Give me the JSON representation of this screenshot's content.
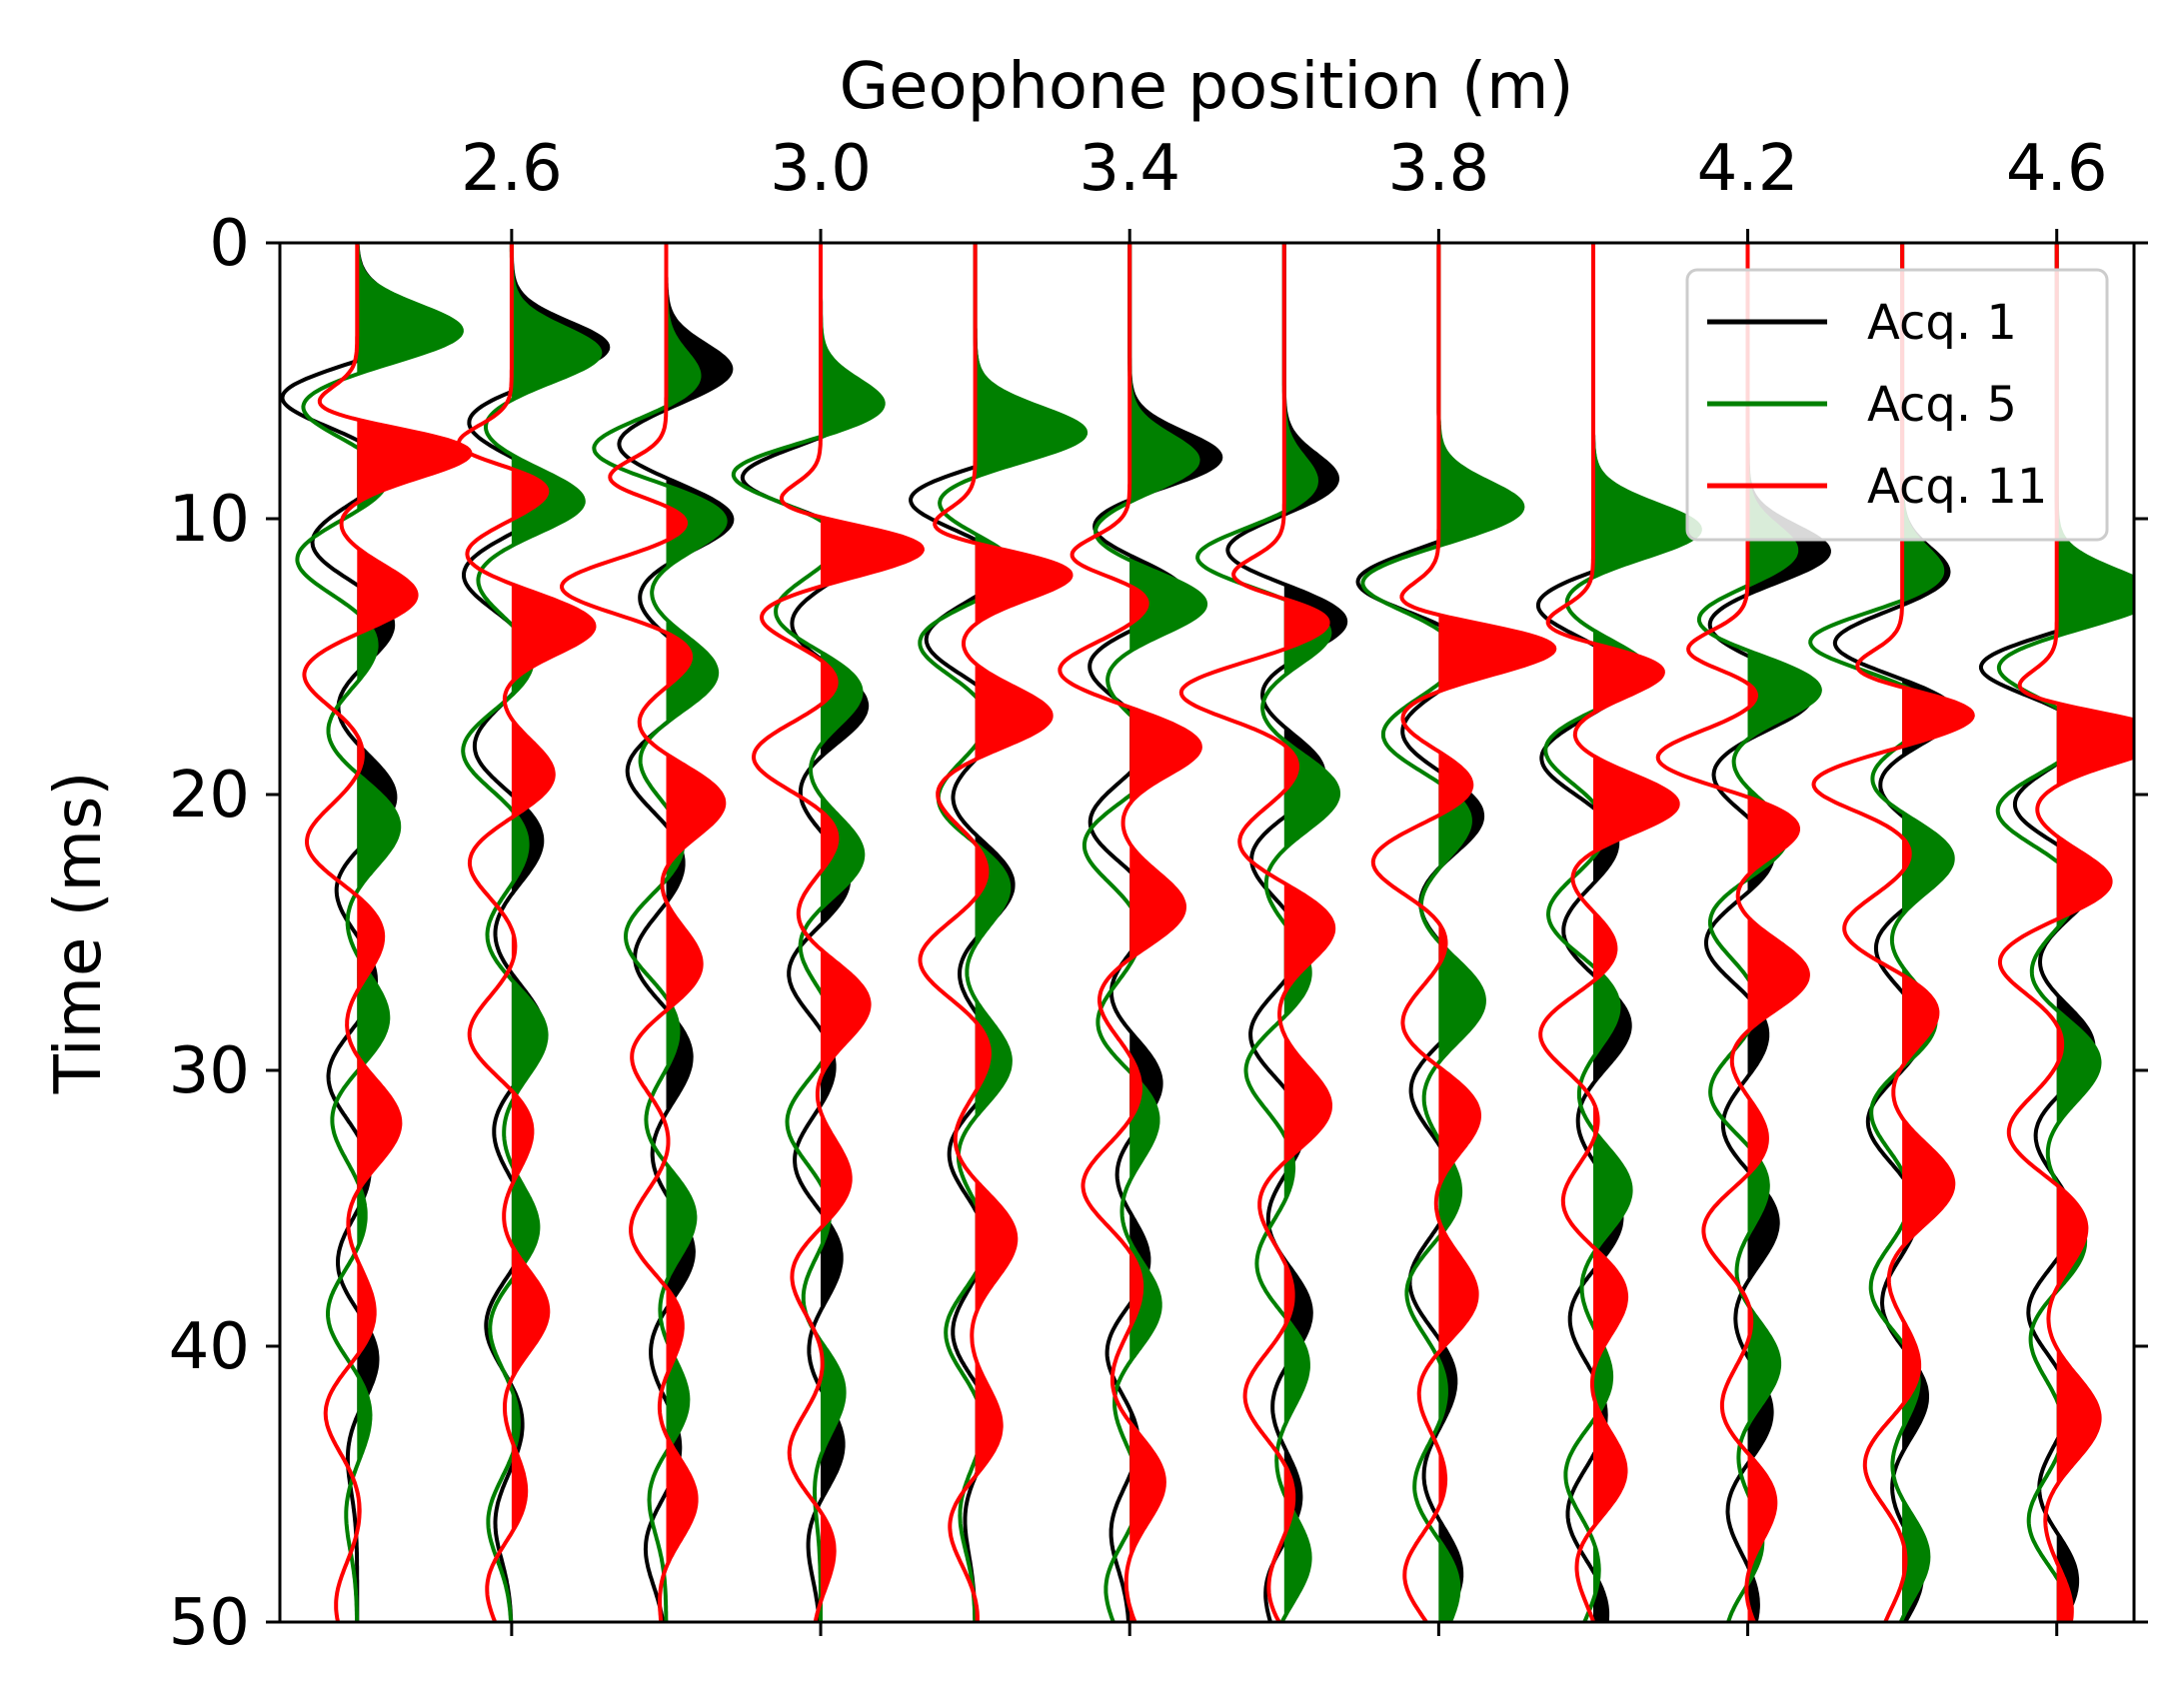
{
  "chart_data": {
    "type": "line",
    "subtype": "seismic wiggle traces with filled positive lobes",
    "xlabel": "Geophone position (m)",
    "ylabel": "Time (ms)",
    "x_axis_position": "top",
    "y_axis_inverted": true,
    "xlim": [
      2.3,
      4.7
    ],
    "ylim": [
      0,
      50
    ],
    "xticks": [
      "2.6",
      "3.0",
      "3.4",
      "3.8",
      "4.2",
      "4.6"
    ],
    "xtick_values": [
      2.6,
      3.0,
      3.4,
      3.8,
      4.2,
      4.6
    ],
    "yticks": [
      "0",
      "10",
      "20",
      "30",
      "40",
      "50"
    ],
    "ytick_values": [
      0,
      10,
      20,
      30,
      40,
      50
    ],
    "grid": false,
    "legend_position": "top-right",
    "trace_positions": [
      2.4,
      2.6,
      2.8,
      3.0,
      3.2,
      3.4,
      3.6,
      3.8,
      4.0,
      4.2,
      4.4,
      4.6
    ],
    "series": [
      {
        "name": "Acq. 1",
        "color": "#000000",
        "first_arrival_ms": [
          3.0,
          3.8,
          4.6,
          5.9,
          6.8,
          7.8,
          8.6,
          9.6,
          10.4,
          11.2,
          12.0,
          12.9
        ]
      },
      {
        "name": "Acq. 5",
        "color": "#008000",
        "first_arrival_ms": [
          2.8,
          3.6,
          4.5,
          5.5,
          6.5,
          7.5,
          8.3,
          9.2,
          10.0,
          10.8,
          11.6,
          12.4
        ]
      },
      {
        "name": "Acq. 11",
        "color": "#ff0000",
        "first_arrival_ms": [
          5.5,
          6.8,
          8.0,
          9.0,
          9.9,
          10.8,
          11.6,
          12.6,
          13.4,
          14.2,
          15.0,
          15.8
        ]
      }
    ]
  }
}
